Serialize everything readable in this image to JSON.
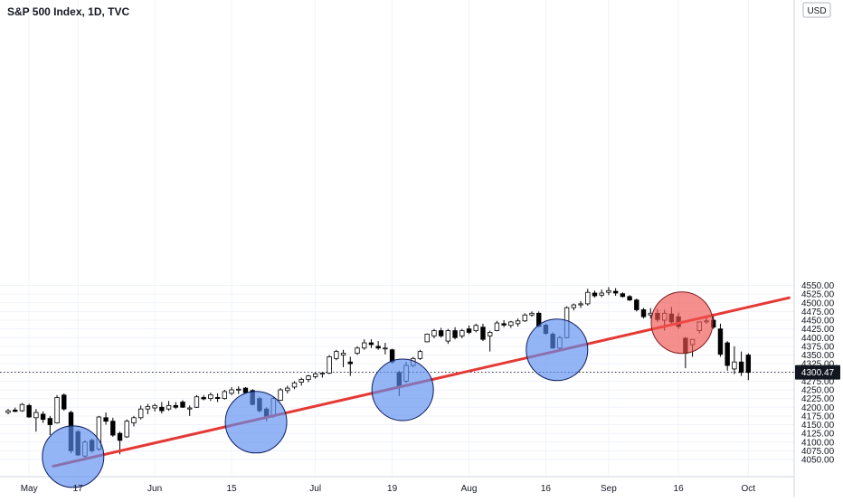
{
  "header": {
    "title": "S&P 500 Index, 1D, TVC"
  },
  "chart_data": {
    "type": "candlestick",
    "title": "S&P 500 Index, 1D, TVC",
    "currency": "USD",
    "last_price": "4300.47",
    "ylim": [
      4030,
      4555
    ],
    "y_ticks": [
      "4050.00",
      "4075.00",
      "4100.00",
      "4125.00",
      "4150.00",
      "4175.00",
      "4200.00",
      "4225.00",
      "4250.00",
      "4275.00",
      "4300.00",
      "4325.00",
      "4350.00",
      "4375.00",
      "4400.00",
      "4425.00",
      "4450.00",
      "4475.00",
      "4500.00",
      "4525.00",
      "4550.00"
    ],
    "x_ticks": [
      "May",
      "17",
      "Jun",
      "15",
      "Jul",
      "19",
      "Aug",
      "16",
      "Sep",
      "16",
      "Oct"
    ],
    "colors": {
      "up": "#ffffff",
      "down": "#000000",
      "trendline": "#e53935",
      "support_circle": "#5b8def",
      "break_circle": "#ef5350"
    },
    "trendline": [
      {
        "date": "May 10",
        "price": 4030
      },
      {
        "date": "Oct 5",
        "price": 4515
      }
    ],
    "annotations": [
      {
        "type": "support",
        "date": "May 13",
        "price": 4058
      },
      {
        "type": "support",
        "date": "Jun 18",
        "price": 4157
      },
      {
        "type": "support",
        "date": "Jul 19",
        "price": 4250
      },
      {
        "type": "support",
        "date": "Aug 19",
        "price": 4365
      },
      {
        "type": "breakdown",
        "date": "Sep 16",
        "price": 4443
      }
    ],
    "candles": [
      [
        4185,
        4195,
        4180,
        4190
      ],
      [
        4192,
        4199,
        4186,
        4188
      ],
      [
        4190,
        4212,
        4187,
        4208
      ],
      [
        4205,
        4210,
        4170,
        4172
      ],
      [
        4170,
        4195,
        4130,
        4185
      ],
      [
        4180,
        4188,
        4155,
        4165
      ],
      [
        4168,
        4175,
        4120,
        4150
      ],
      [
        4155,
        4235,
        4153,
        4228
      ],
      [
        4235,
        4240,
        4190,
        4195
      ],
      [
        4185,
        4190,
        4068,
        4075
      ],
      [
        4130,
        4135,
        4060,
        4063
      ],
      [
        4060,
        4105,
        4055,
        4100
      ],
      [
        4105,
        4110,
        4070,
        4075
      ],
      [
        4080,
        4175,
        4075,
        4172
      ],
      [
        4170,
        4185,
        4150,
        4160
      ],
      [
        4160,
        4170,
        4115,
        4120
      ],
      [
        4125,
        4130,
        4065,
        4105
      ],
      [
        4115,
        4165,
        4112,
        4160
      ],
      [
        4155,
        4175,
        4145,
        4170
      ],
      [
        4170,
        4205,
        4165,
        4195
      ],
      [
        4195,
        4210,
        4180,
        4202
      ],
      [
        4198,
        4210,
        4188,
        4205
      ],
      [
        4200,
        4215,
        4182,
        4190
      ],
      [
        4195,
        4218,
        4190,
        4205
      ],
      [
        4205,
        4215,
        4195,
        4200
      ],
      [
        4215,
        4220,
        4198,
        4200
      ],
      [
        4195,
        4205,
        4175,
        4198
      ],
      [
        4200,
        4235,
        4198,
        4230
      ],
      [
        4228,
        4235,
        4220,
        4224
      ],
      [
        4225,
        4242,
        4218,
        4236
      ],
      [
        4228,
        4240,
        4215,
        4225
      ],
      [
        4225,
        4250,
        4222,
        4245
      ],
      [
        4240,
        4258,
        4235,
        4250
      ],
      [
        4250,
        4260,
        4238,
        4252
      ],
      [
        4255,
        4258,
        4240,
        4242
      ],
      [
        4248,
        4252,
        4205,
        4208
      ],
      [
        4225,
        4230,
        4185,
        4190
      ],
      [
        4195,
        4200,
        4160,
        4172
      ],
      [
        4175,
        4230,
        4170,
        4225
      ],
      [
        4220,
        4255,
        4218,
        4250
      ],
      [
        4248,
        4262,
        4240,
        4255
      ],
      [
        4258,
        4275,
        4252,
        4270
      ],
      [
        4272,
        4285,
        4262,
        4280
      ],
      [
        4280,
        4293,
        4272,
        4290
      ],
      [
        4288,
        4300,
        4282,
        4296
      ],
      [
        4295,
        4300,
        4285,
        4298
      ],
      [
        4298,
        4350,
        4295,
        4345
      ],
      [
        4340,
        4365,
        4335,
        4360
      ],
      [
        4350,
        4365,
        4315,
        4355
      ],
      [
        4330,
        4345,
        4290,
        4325
      ],
      [
        4355,
        4375,
        4350,
        4370
      ],
      [
        4370,
        4395,
        4365,
        4385
      ],
      [
        4385,
        4395,
        4370,
        4380
      ],
      [
        4375,
        4390,
        4365,
        4370
      ],
      [
        4368,
        4385,
        4352,
        4370
      ],
      [
        4365,
        4368,
        4325,
        4330
      ],
      [
        4300,
        4305,
        4232,
        4260
      ],
      [
        4275,
        4330,
        4270,
        4320
      ],
      [
        4320,
        4345,
        4315,
        4340
      ],
      [
        4340,
        4365,
        4336,
        4360
      ],
      [
        4388,
        4412,
        4386,
        4410
      ],
      [
        4405,
        4425,
        4398,
        4420
      ],
      [
        4420,
        4428,
        4400,
        4405
      ],
      [
        4390,
        4425,
        4382,
        4420
      ],
      [
        4420,
        4430,
        4395,
        4400
      ],
      [
        4405,
        4425,
        4398,
        4420
      ],
      [
        4425,
        4435,
        4410,
        4415
      ],
      [
        4420,
        4440,
        4415,
        4435
      ],
      [
        4430,
        4440,
        4390,
        4395
      ],
      [
        4405,
        4420,
        4360,
        4415
      ],
      [
        4420,
        4448,
        4418,
        4442
      ],
      [
        4440,
        4450,
        4430,
        4436
      ],
      [
        4435,
        4448,
        4428,
        4445
      ],
      [
        4440,
        4455,
        4432,
        4448
      ],
      [
        4448,
        4470,
        4445,
        4465
      ],
      [
        4465,
        4475,
        4460,
        4470
      ],
      [
        4470,
        4475,
        4430,
        4432
      ],
      [
        4436,
        4440,
        4408,
        4412
      ],
      [
        4410,
        4415,
        4368,
        4370
      ],
      [
        4370,
        4405,
        4365,
        4400
      ],
      [
        4400,
        4490,
        4398,
        4486
      ],
      [
        4486,
        4498,
        4478,
        4494
      ],
      [
        4494,
        4505,
        4485,
        4497
      ],
      [
        4497,
        4540,
        4492,
        4530
      ],
      [
        4528,
        4535,
        4515,
        4520
      ],
      [
        4522,
        4538,
        4516,
        4528
      ],
      [
        4530,
        4545,
        4522,
        4535
      ],
      [
        4533,
        4542,
        4520,
        4528
      ],
      [
        4526,
        4530,
        4515,
        4518
      ],
      [
        4518,
        4522,
        4505,
        4508
      ],
      [
        4508,
        4512,
        4475,
        4480
      ],
      [
        4480,
        4485,
        4455,
        4460
      ],
      [
        4465,
        4485,
        4455,
        4470
      ],
      [
        4470,
        4482,
        4445,
        4452
      ],
      [
        4450,
        4480,
        4420,
        4470
      ],
      [
        4468,
        4488,
        4440,
        4445
      ],
      [
        4460,
        4472,
        4425,
        4432
      ],
      [
        4398,
        4402,
        4312,
        4355
      ],
      [
        4380,
        4395,
        4345,
        4395
      ],
      [
        4420,
        4445,
        4412,
        4445
      ],
      [
        4445,
        4460,
        4440,
        4448
      ],
      [
        4450,
        4465,
        4425,
        4430
      ],
      [
        4425,
        4440,
        4345,
        4352
      ],
      [
        4385,
        4390,
        4305,
        4320
      ],
      [
        4310,
        4375,
        4295,
        4330
      ],
      [
        4330,
        4360,
        4290,
        4300
      ],
      [
        4350,
        4355,
        4278,
        4300
      ]
    ]
  }
}
